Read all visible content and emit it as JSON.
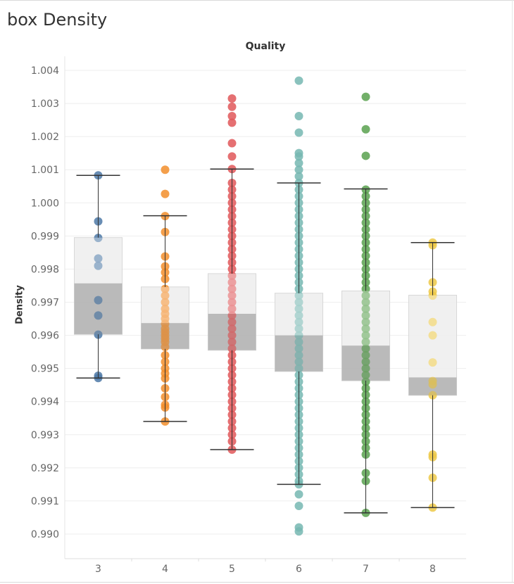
{
  "title": "box Density",
  "chart_data": {
    "type": "box",
    "title": "box Density",
    "column_header": "Quality",
    "xlabel": "",
    "ylabel": "Density",
    "ylim": [
      0.9895,
      1.0045
    ],
    "yticks": [
      "0.990",
      "0.991",
      "0.992",
      "0.993",
      "0.994",
      "0.995",
      "0.996",
      "0.997",
      "0.998",
      "0.999",
      "1.000",
      "1.001",
      "1.002",
      "1.003",
      "1.004"
    ],
    "grid": "horizontal",
    "categories": [
      "3",
      "4",
      "5",
      "6",
      "7",
      "8"
    ],
    "colors": {
      "3": "#4e79a7",
      "4": "#f28e2b",
      "5": "#e15759",
      "6": "#76b7b2",
      "7": "#59a14f",
      "8": "#edc948"
    },
    "box_colors": {
      "upper": "#e6e6e6",
      "lower": "#bdbdbd",
      "whisker": "#333333"
    },
    "boxes": [
      {
        "category": "3",
        "whisker_low": 0.99471,
        "q1": 0.99603,
        "median": 0.99757,
        "q3": 0.99895,
        "whisker_high": 1.00083
      },
      {
        "category": "4",
        "whisker_low": 0.9934,
        "q1": 0.99559,
        "median": 0.99637,
        "q3": 0.99746,
        "whisker_high": 0.99961
      },
      {
        "category": "5",
        "whisker_low": 0.99255,
        "q1": 0.99555,
        "median": 0.99665,
        "q3": 0.99786,
        "whisker_high": 1.00102
      },
      {
        "category": "6",
        "whisker_low": 0.9915,
        "q1": 0.99491,
        "median": 0.996,
        "q3": 0.99727,
        "whisker_high": 1.0006
      },
      {
        "category": "7",
        "whisker_low": 0.99064,
        "q1": 0.99463,
        "median": 0.99569,
        "q3": 0.99734,
        "whisker_high": 1.00042
      },
      {
        "category": "8",
        "whisker_low": 0.9908,
        "q1": 0.99419,
        "median": 0.99473,
        "q3": 0.99721,
        "whisker_high": 0.9988
      }
    ],
    "points": {
      "3": [
        1.00083,
        0.99944,
        0.99894,
        0.99832,
        0.9981,
        0.99706,
        0.9966,
        0.99602,
        0.99478,
        0.99471
      ],
      "4": [
        1.001,
        1.00027,
        0.9996,
        0.99912,
        0.99838,
        0.99808,
        0.9979,
        0.9977,
        0.9974,
        0.9972,
        0.997,
        0.9968,
        0.99665,
        0.9965,
        0.99635,
        0.9962,
        0.9961,
        0.996,
        0.9959,
        0.9958,
        0.99565,
        0.9954,
        0.9952,
        0.995,
        0.99485,
        0.9947,
        0.9944,
        0.99414,
        0.9939,
        0.99382,
        0.9934
      ],
      "5": [
        1.00315,
        1.0029,
        1.00262,
        1.00242,
        1.0018,
        1.0014,
        1.00102,
        1.0006,
        1.0004,
        1.0002,
        1.0,
        0.9998,
        0.9996,
        0.9994,
        0.9992,
        0.999,
        0.9988,
        0.9986,
        0.9984,
        0.9982,
        0.998,
        0.9978,
        0.9976,
        0.9974,
        0.9972,
        0.997,
        0.9968,
        0.9966,
        0.9964,
        0.9962,
        0.996,
        0.9958,
        0.9956,
        0.9954,
        0.9952,
        0.995,
        0.9948,
        0.9946,
        0.9944,
        0.9942,
        0.994,
        0.9938,
        0.9936,
        0.9934,
        0.9932,
        0.993,
        0.9928,
        0.99255
      ],
      "6": [
        1.00369,
        1.00262,
        1.00212,
        1.0015,
        1.0014,
        1.0012,
        1.001,
        1.0008,
        1.0006,
        1.0004,
        1.0002,
        1.0,
        0.9998,
        0.9996,
        0.9994,
        0.9992,
        0.999,
        0.9988,
        0.9986,
        0.9984,
        0.9982,
        0.998,
        0.9978,
        0.9976,
        0.9974,
        0.9972,
        0.997,
        0.9968,
        0.9966,
        0.9964,
        0.9962,
        0.996,
        0.9958,
        0.9956,
        0.9954,
        0.9952,
        0.995,
        0.9948,
        0.9946,
        0.9944,
        0.9942,
        0.994,
        0.9938,
        0.9936,
        0.9934,
        0.9932,
        0.993,
        0.9928,
        0.9926,
        0.9924,
        0.9922,
        0.992,
        0.9918,
        0.9916,
        0.9915,
        0.9912,
        0.99085,
        0.9902,
        0.99008
      ],
      "7": [
        1.0032,
        1.00222,
        1.00142,
        1.0004,
        1.0002,
        1.0,
        0.9998,
        0.9996,
        0.9994,
        0.9992,
        0.999,
        0.9988,
        0.9986,
        0.9984,
        0.9982,
        0.998,
        0.9978,
        0.9976,
        0.9974,
        0.9972,
        0.997,
        0.9968,
        0.9966,
        0.9964,
        0.9962,
        0.996,
        0.9958,
        0.9956,
        0.9954,
        0.9952,
        0.995,
        0.9948,
        0.9946,
        0.9944,
        0.9942,
        0.994,
        0.9938,
        0.9936,
        0.9934,
        0.9932,
        0.993,
        0.9928,
        0.9926,
        0.9924,
        0.99184,
        0.9916,
        0.99064
      ],
      "8": [
        0.9988,
        0.99872,
        0.9976,
        0.99732,
        0.9972,
        0.9964,
        0.996,
        0.99518,
        0.99462,
        0.99452,
        0.99419,
        0.9924,
        0.99232,
        0.9917,
        0.9908
      ]
    }
  }
}
